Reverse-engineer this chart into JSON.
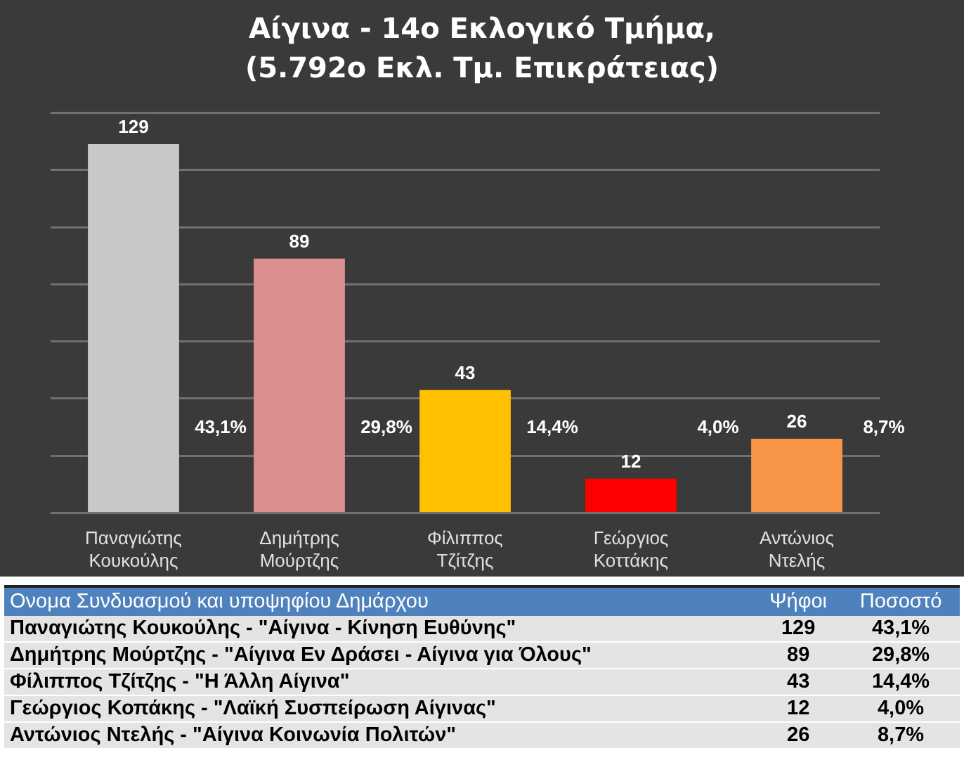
{
  "chart_data": {
    "type": "bar",
    "title": "Αίγινα - 14ο Εκλογικό Τμήμα,\n(5.792ο Εκλ. Τμ. Επικράτειας)",
    "categories": [
      "Παναγιώτης Κουκούλης",
      "Δημήτρης Μούρτζης",
      "Φίλιππος Τζίτζης",
      "Γεώργιος Κοττάκης",
      "Αντώνιος Ντελής"
    ],
    "values": [
      129,
      89,
      43,
      12,
      26
    ],
    "colors": [
      "#c8c8c8",
      "#dc8f8f",
      "#ffc000",
      "#ff0000",
      "#f79646"
    ],
    "ylim": [
      0,
      140
    ],
    "yticks": [
      {
        "value": 0,
        "label": null
      },
      {
        "value": 20,
        "label": null
      },
      {
        "value": 40,
        "label": null
      },
      {
        "value": 60,
        "label": null
      },
      {
        "value": 80,
        "label": null
      },
      {
        "value": 100,
        "label": null
      },
      {
        "value": 120,
        "label": null
      },
      {
        "value": 140,
        "label": null
      }
    ],
    "grid": "y",
    "data_labels": true,
    "annotations": [
      "43,1%",
      "29,8%",
      "14,4%",
      "4,0%",
      "8,7%",
      "Ονομα Συνδυασμού και υποψηφίου Δημάρχου",
      "Ψήφοι",
      "Ποσοστό",
      "Παναγιώτης Κουκούλης - \"Αίγινα - Κίνηση Ευθύνης\"",
      "Δημήτρης Μούρτζης - \"Αίγινα  Εν Δράσει - Αίγινα για Όλους\"",
      "Φίλιππος Τζίτζης - \"Η Άλλη Αίγινα\"",
      "Γεώργιος Κοπάκης - \"Λαϊκή Συσπείρωση Αίγινας\"",
      "Αντώνιος Ντελής - \"Αίγινα Κοινωνία Πολιτών\"",
      "129",
      "89",
      "43",
      "12",
      "26",
      "43,1%",
      "29,8%",
      "14,4%",
      "4,0%",
      "8,7%"
    ]
  }
}
